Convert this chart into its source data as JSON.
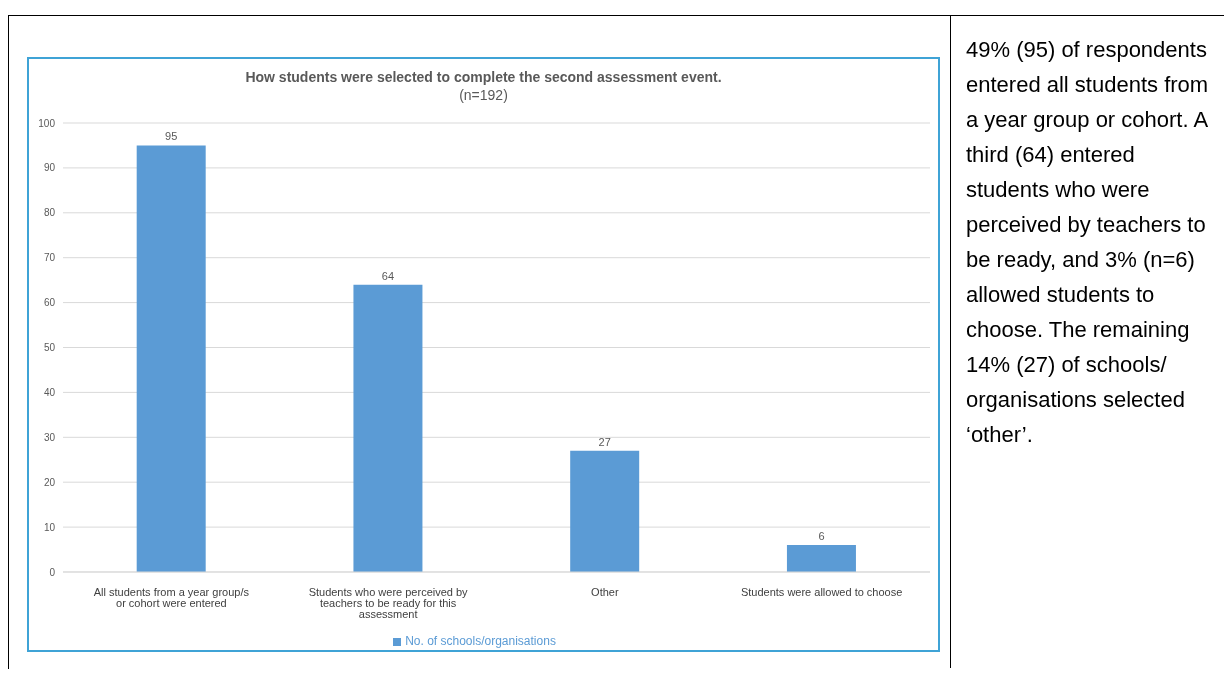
{
  "chart_data": {
    "type": "bar",
    "title": "How students were selected to complete the second assessment event.",
    "subtitle": "(n=192)",
    "categories": [
      "All students from a year group/s or cohort were entered",
      "Students who were perceived by teachers to be ready for this assessment",
      "Other",
      "Students were allowed to choose"
    ],
    "series": [
      {
        "name": "No. of schools/organisations",
        "color": "#5b9bd5",
        "values": [
          95,
          64,
          27,
          6
        ]
      }
    ],
    "ylim": [
      0,
      100
    ],
    "yticks": [
      0,
      10,
      20,
      30,
      40,
      50,
      60,
      70,
      80,
      90,
      100
    ],
    "grid": "y",
    "legend": "bottom",
    "data_labels": true,
    "annotations": [
      "49% (95) of respondents entered all students from a year group or cohort. A third (64) entered students who were perceived by teachers to be ready, and 3% (n=6) allowed students to choose. The remaining 14% (27) of schools/ organisations selected ‘other’."
    ]
  }
}
